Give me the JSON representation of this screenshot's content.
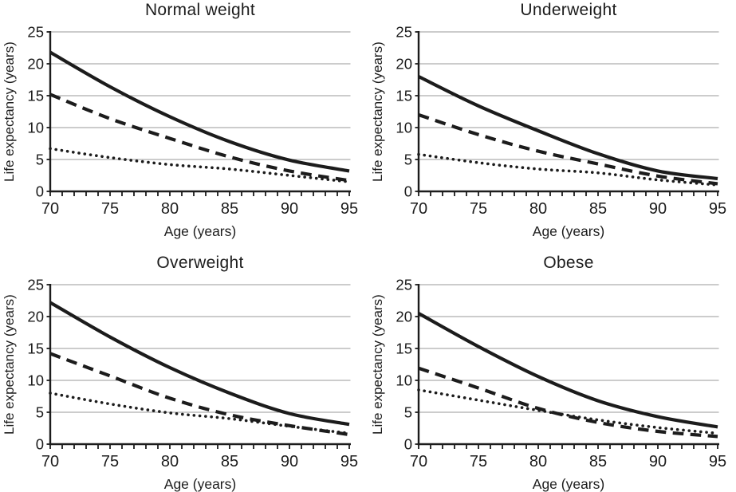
{
  "figure": {
    "kind": "2x2 small-multiples line figure",
    "background": "#ffffff"
  },
  "colors": {
    "line": "#1c1c1c",
    "text": "#1c1c1c",
    "grid": "#999999",
    "background": "#ffffff"
  },
  "chart_data": [
    {
      "type": "line",
      "title": "Normal weight",
      "xlabel": "Age (years)",
      "ylabel": "Life expectancy (years)",
      "x": [
        70,
        75,
        80,
        85,
        90,
        95
      ],
      "xlim": [
        70,
        95
      ],
      "ylim": [
        0,
        25
      ],
      "x_major_ticks": [
        70,
        75,
        80,
        85,
        90,
        95
      ],
      "x_minor_step": 1,
      "y_ticks": [
        0,
        5,
        10,
        15,
        20,
        25
      ],
      "grid": true,
      "legend": "none",
      "series": [
        {
          "style": "solid",
          "values": [
            21.8,
            16.4,
            11.7,
            7.8,
            4.9,
            3.2
          ]
        },
        {
          "style": "dashed",
          "values": [
            15.2,
            11.4,
            8.3,
            5.4,
            3.2,
            1.7
          ]
        },
        {
          "style": "dotted",
          "values": [
            6.7,
            5.3,
            4.2,
            3.5,
            2.5,
            1.5
          ]
        }
      ]
    },
    {
      "type": "line",
      "title": "Underweight",
      "xlabel": "Age (years)",
      "ylabel": "Life expectancy (years)",
      "x": [
        70,
        75,
        80,
        85,
        90,
        95
      ],
      "xlim": [
        70,
        95
      ],
      "ylim": [
        0,
        25
      ],
      "x_major_ticks": [
        70,
        75,
        80,
        85,
        90,
        95
      ],
      "x_minor_step": 1,
      "y_ticks": [
        0,
        5,
        10,
        15,
        20,
        25
      ],
      "grid": true,
      "legend": "none",
      "series": [
        {
          "style": "solid",
          "values": [
            18.0,
            13.4,
            9.5,
            5.9,
            3.2,
            2.0
          ]
        },
        {
          "style": "dashed",
          "values": [
            12.0,
            8.9,
            6.3,
            4.3,
            2.4,
            1.2
          ]
        },
        {
          "style": "dotted",
          "values": [
            5.8,
            4.5,
            3.5,
            2.9,
            1.8,
            1.0
          ]
        }
      ]
    },
    {
      "type": "line",
      "title": "Overweight",
      "xlabel": "Age (years)",
      "ylabel": "Life expectancy (years)",
      "x": [
        70,
        75,
        80,
        85,
        90,
        95
      ],
      "xlim": [
        70,
        95
      ],
      "ylim": [
        0,
        25
      ],
      "x_major_ticks": [
        70,
        75,
        80,
        85,
        90,
        95
      ],
      "x_minor_step": 1,
      "y_ticks": [
        0,
        5,
        10,
        15,
        20,
        25
      ],
      "grid": true,
      "legend": "none",
      "series": [
        {
          "style": "solid",
          "values": [
            22.2,
            16.8,
            12.0,
            8.0,
            4.8,
            3.1
          ]
        },
        {
          "style": "dashed",
          "values": [
            14.2,
            10.7,
            7.2,
            4.6,
            2.9,
            1.5
          ]
        },
        {
          "style": "dotted",
          "values": [
            8.0,
            6.3,
            4.9,
            4.0,
            2.8,
            1.7
          ]
        }
      ]
    },
    {
      "type": "line",
      "title": "Obese",
      "xlabel": "Age (years)",
      "ylabel": "Life expectancy (years)",
      "x": [
        70,
        75,
        80,
        85,
        90,
        95
      ],
      "xlim": [
        70,
        95
      ],
      "ylim": [
        0,
        25
      ],
      "x_major_ticks": [
        70,
        75,
        80,
        85,
        90,
        95
      ],
      "x_minor_step": 1,
      "y_ticks": [
        0,
        5,
        10,
        15,
        20,
        25
      ],
      "grid": true,
      "legend": "none",
      "series": [
        {
          "style": "solid",
          "values": [
            20.5,
            15.3,
            10.6,
            6.8,
            4.3,
            2.7
          ]
        },
        {
          "style": "dashed",
          "values": [
            11.9,
            8.8,
            5.6,
            3.4,
            2.0,
            1.2
          ]
        },
        {
          "style": "dotted",
          "values": [
            8.5,
            6.9,
            5.3,
            3.8,
            2.6,
            1.7
          ]
        }
      ]
    }
  ]
}
